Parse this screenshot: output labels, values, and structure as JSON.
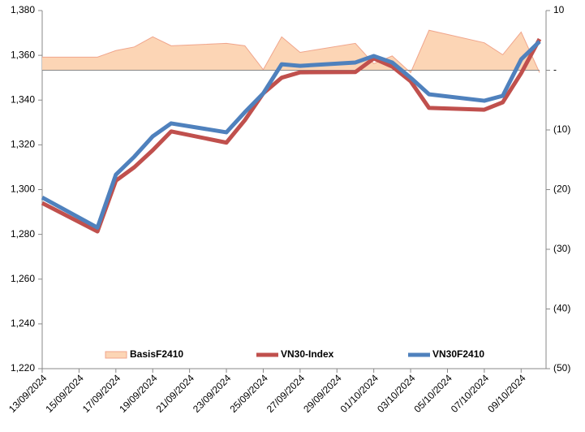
{
  "chart_data": {
    "type": "line",
    "x": [
      "13/09/2024",
      "16/09/2024",
      "17/09/2024",
      "18/09/2024",
      "19/09/2024",
      "20/09/2024",
      "23/09/2024",
      "24/09/2024",
      "25/09/2024",
      "26/09/2024",
      "27/09/2024",
      "30/09/2024",
      "01/10/2024",
      "02/10/2024",
      "03/10/2024",
      "04/10/2024",
      "07/10/2024",
      "08/10/2024",
      "09/10/2024",
      "10/10/2024"
    ],
    "series": [
      {
        "name": "BasisF2410",
        "type": "area",
        "axis": "y2",
        "color": "#fcd5b5",
        "edge_color": "#f0a58c",
        "values": [
          2.2,
          2.2,
          3.3,
          3.9,
          5.6,
          4.1,
          4.5,
          4.1,
          0.1,
          5.6,
          3.0,
          4.5,
          1.1,
          2.4,
          -0.4,
          6.7,
          4.6,
          2.6,
          6.4,
          -0.4
        ]
      },
      {
        "name": "VN30-Index",
        "type": "line",
        "color": "#c0504d",
        "values": [
          1294,
          1281.3,
          1304,
          1310,
          1317.6,
          1326,
          1321,
          1331,
          1343,
          1350,
          1352.4,
          1352.5,
          1358.6,
          1355,
          1348.4,
          1336.5,
          1335.7,
          1339,
          1352,
          1367.3
        ]
      },
      {
        "name": "VN30F2410",
        "type": "line",
        "color": "#4f81bd",
        "values": [
          1296.5,
          1283,
          1306.7,
          1314.7,
          1323.8,
          1329.6,
          1325.6,
          1334.6,
          1343,
          1356,
          1355.3,
          1356.8,
          1359.7,
          1356.8,
          1350,
          1342.6,
          1339.7,
          1341.9,
          1358.2,
          1366.2
        ]
      }
    ],
    "xlim": [
      "13/09/2024",
      "10/10/2024"
    ],
    "xticks": [
      "13/09/2024",
      "15/09/2024",
      "17/09/2024",
      "19/09/2024",
      "21/09/2024",
      "23/09/2024",
      "25/09/2024",
      "27/09/2024",
      "29/09/2024",
      "01/10/2024",
      "03/10/2024",
      "05/10/2024",
      "07/10/2024",
      "09/10/2024"
    ],
    "ylim": [
      1220,
      1380
    ],
    "yticks": [
      {
        "value": 1220,
        "label": "1,220"
      },
      {
        "value": 1240,
        "label": "1,240"
      },
      {
        "value": 1260,
        "label": "1,260"
      },
      {
        "value": 1280,
        "label": "1,280"
      },
      {
        "value": 1300,
        "label": "1,300"
      },
      {
        "value": 1320,
        "label": "1,320"
      },
      {
        "value": 1340,
        "label": "1,340"
      },
      {
        "value": 1360,
        "label": "1,360"
      },
      {
        "value": 1380,
        "label": "1,380"
      }
    ],
    "y2lim": [
      -50,
      10
    ],
    "y2ticks": [
      {
        "value": -50,
        "label": "(50)"
      },
      {
        "value": -40,
        "label": "(40)"
      },
      {
        "value": -30,
        "label": "(30)"
      },
      {
        "value": -20,
        "label": "(20)"
      },
      {
        "value": -10,
        "label": "(10)"
      },
      {
        "value": 0,
        "label": "-"
      },
      10
    ],
    "legend": "bottom",
    "grid": false
  }
}
